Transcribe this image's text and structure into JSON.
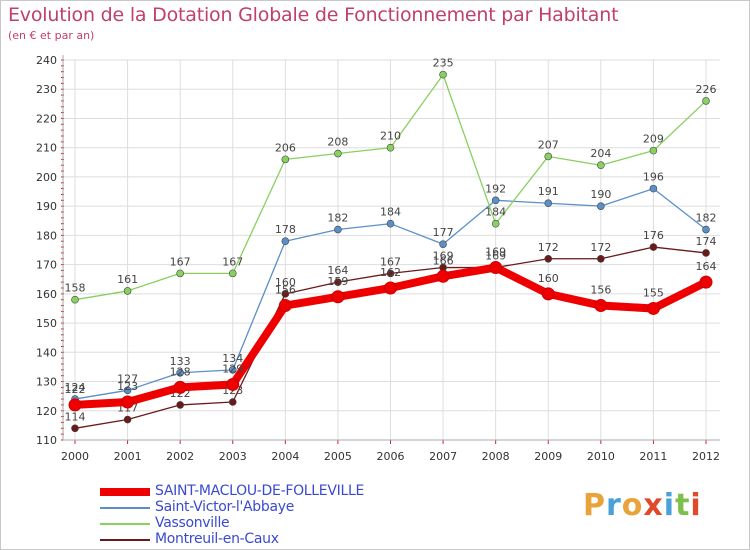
{
  "header": {
    "title": "Evolution de la Dotation Globale de Fonctionnement par Habitant",
    "subtitle": "(en € et par an)"
  },
  "brand": {
    "text": "Proxiti",
    "colors": [
      "#e8a33a",
      "#4aa0d8",
      "#e8a33a",
      "#e04a2a",
      "#4aa0d8",
      "#7cc04a",
      "#e04a2a"
    ]
  },
  "chart_data": {
    "type": "line",
    "title": "Evolution de la Dotation Globale de Fonctionnement par Habitant",
    "subtitle": "(en € et par an)",
    "xlabel": "",
    "ylabel": "",
    "ylim": [
      110,
      240
    ],
    "yticks": [
      110,
      120,
      130,
      140,
      150,
      160,
      170,
      180,
      190,
      200,
      210,
      220,
      230,
      240
    ],
    "x": [
      "2000",
      "2001",
      "2002",
      "2003",
      "2004",
      "2005",
      "2006",
      "2007",
      "2008",
      "2009",
      "2010",
      "2011",
      "2012"
    ],
    "grid": true,
    "legend_position": "bottom-left",
    "series": [
      {
        "name": "SAINT-MACLOU-DE-FOLLEVILLE",
        "color": "#ee0000",
        "values": [
          122,
          123,
          128,
          129,
          156,
          159,
          162,
          166,
          169,
          160,
          156,
          155,
          164
        ]
      },
      {
        "name": "Saint-Victor-l'Abbaye",
        "color": "#5a8fc8",
        "values": [
          124,
          127,
          133,
          134,
          178,
          182,
          184,
          177,
          192,
          191,
          190,
          196,
          182
        ]
      },
      {
        "name": "Vassonville",
        "color": "#88d060",
        "values": [
          158,
          161,
          167,
          167,
          206,
          208,
          210,
          235,
          184,
          207,
          204,
          209,
          226
        ]
      },
      {
        "name": "Montreuil-en-Caux",
        "color": "#6a1a1a",
        "values": [
          114,
          117,
          122,
          123,
          160,
          164,
          167,
          169,
          169,
          172,
          172,
          176,
          174
        ]
      }
    ]
  }
}
